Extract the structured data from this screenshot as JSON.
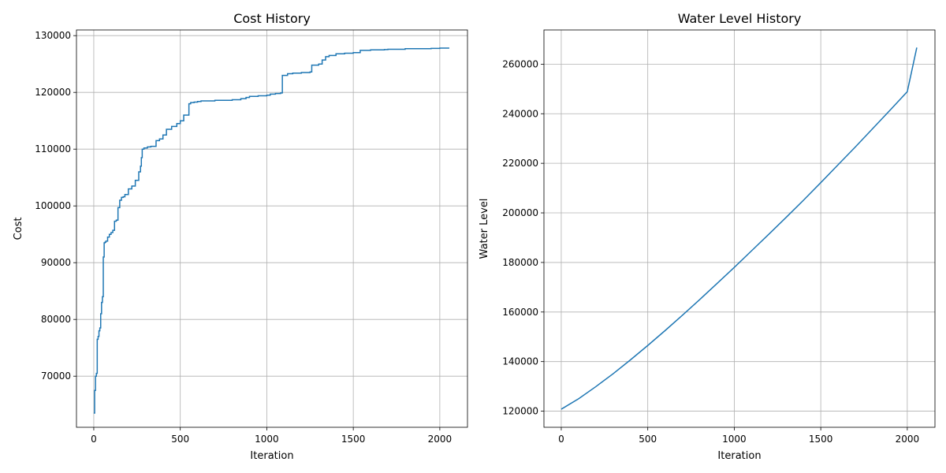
{
  "chart_data": [
    {
      "type": "line",
      "title": "Cost History",
      "xlabel": "Iteration",
      "ylabel": "Cost",
      "xlim": [
        -100,
        2160
      ],
      "ylim": [
        61000,
        131000
      ],
      "xticks": [
        0,
        500,
        1000,
        1500,
        2000
      ],
      "yticks": [
        70000,
        80000,
        90000,
        100000,
        110000,
        120000,
        130000
      ],
      "grid": true,
      "step": true,
      "color": "#1f77b4",
      "series": [
        {
          "x": [
            0,
            5,
            10,
            15,
            20,
            25,
            30,
            35,
            40,
            45,
            50,
            55,
            60,
            65,
            70,
            80,
            90,
            100,
            110,
            120,
            130,
            140,
            150,
            160,
            170,
            180,
            200,
            220,
            240,
            260,
            270,
            275,
            280,
            290,
            310,
            330,
            360,
            380,
            400,
            420,
            450,
            480,
            500,
            520,
            550,
            560,
            580,
            600,
            620,
            700,
            800,
            850,
            880,
            900,
            950,
            1000,
            1020,
            1050,
            1080,
            1090,
            1120,
            1150,
            1200,
            1250,
            1260,
            1300,
            1320,
            1340,
            1360,
            1400,
            1450,
            1500,
            1540,
            1600,
            1680,
            1700,
            1800,
            1950,
            2000,
            2055
          ],
          "values": [
            63500,
            67500,
            70000,
            70500,
            76500,
            77000,
            78000,
            78500,
            81000,
            83000,
            84000,
            91000,
            93500,
            93600,
            93800,
            94500,
            95000,
            95300,
            95700,
            97300,
            97500,
            99700,
            101000,
            101500,
            101600,
            102000,
            103000,
            103500,
            104500,
            106000,
            107000,
            108500,
            110000,
            110200,
            110400,
            110500,
            111500,
            111800,
            112500,
            113500,
            114000,
            114500,
            115000,
            116000,
            118000,
            118200,
            118300,
            118400,
            118500,
            118600,
            118700,
            118900,
            119100,
            119300,
            119400,
            119500,
            119700,
            119800,
            119900,
            123000,
            123300,
            123400,
            123500,
            123600,
            124800,
            125000,
            125700,
            126300,
            126500,
            126800,
            126900,
            127000,
            127400,
            127500,
            127550,
            127600,
            127700,
            127750,
            127800,
            127800
          ]
        }
      ]
    },
    {
      "type": "line",
      "title": "Water Level History",
      "xlabel": "Iteration",
      "ylabel": "Water Level",
      "xlim": [
        -100,
        2160
      ],
      "ylim": [
        113500,
        273800
      ],
      "xticks": [
        0,
        500,
        1000,
        1500,
        2000
      ],
      "yticks": [
        120000,
        140000,
        160000,
        180000,
        200000,
        220000,
        240000,
        260000
      ],
      "grid": true,
      "step": false,
      "color": "#1f77b4",
      "series": [
        {
          "x": [
            0,
            100,
            200,
            300,
            400,
            500,
            600,
            700,
            800,
            900,
            1000,
            1100,
            1200,
            1300,
            1400,
            1500,
            1600,
            1700,
            1800,
            1900,
            2000,
            2055
          ],
          "values": [
            120800,
            125000,
            129900,
            135100,
            140700,
            146500,
            152500,
            158700,
            165000,
            171500,
            178000,
            184700,
            191400,
            198200,
            205100,
            212200,
            219400,
            226600,
            234000,
            241400,
            248900,
            266700
          ]
        }
      ]
    }
  ]
}
